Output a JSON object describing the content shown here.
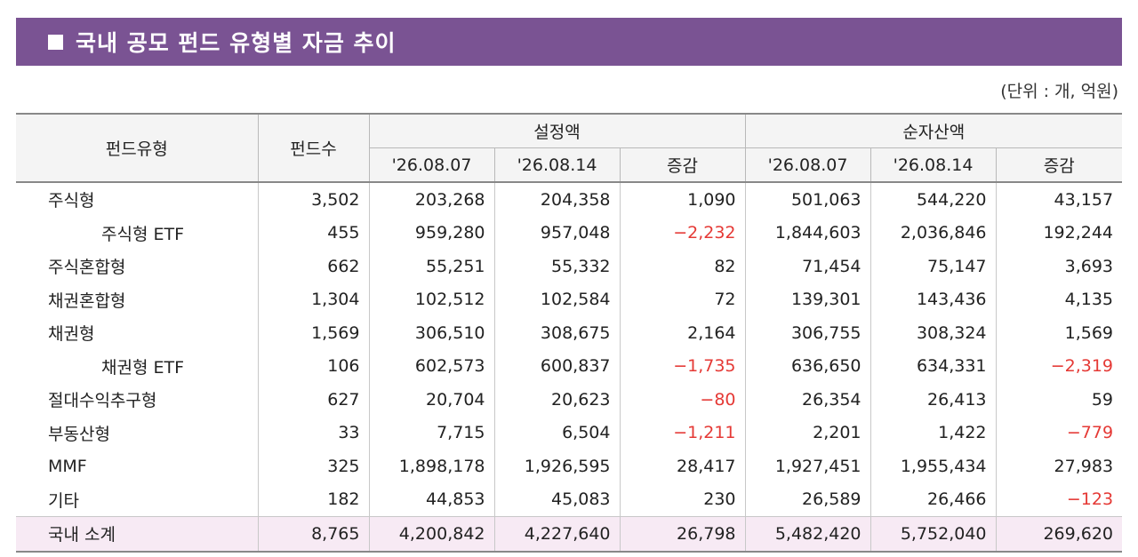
{
  "title": "국내 공모 펀드 유형별 자금 추이",
  "unit": "(단위 : 개, 억원)",
  "headers": {
    "type": "펀드유형",
    "count": "펀드수",
    "set_amount": "설정액",
    "net_assets": "순자산액",
    "date1": "'26.08.07",
    "date2": "'26.08.14",
    "change": "증감"
  },
  "rows": [
    {
      "name": "주식형",
      "indent": false,
      "c": [
        "3,502",
        "203,268",
        "204,358",
        "1,090",
        "501,063",
        "544,220",
        "43,157"
      ]
    },
    {
      "name": "주식형 ETF",
      "indent": true,
      "c": [
        "455",
        "959,280",
        "957,048",
        "−2,232",
        "1,844,603",
        "2,036,846",
        "192,244"
      ]
    },
    {
      "name": "주식혼합형",
      "indent": false,
      "c": [
        "662",
        "55,251",
        "55,332",
        "82",
        "71,454",
        "75,147",
        "3,693"
      ]
    },
    {
      "name": "채권혼합형",
      "indent": false,
      "c": [
        "1,304",
        "102,512",
        "102,584",
        "72",
        "139,301",
        "143,436",
        "4,135"
      ]
    },
    {
      "name": "채권형",
      "indent": false,
      "c": [
        "1,569",
        "306,510",
        "308,675",
        "2,164",
        "306,755",
        "308,324",
        "1,569"
      ]
    },
    {
      "name": "채권형 ETF",
      "indent": true,
      "c": [
        "106",
        "602,573",
        "600,837",
        "−1,735",
        "636,650",
        "634,331",
        "−2,319"
      ]
    },
    {
      "name": "절대수익추구형",
      "indent": false,
      "c": [
        "627",
        "20,704",
        "20,623",
        "−80",
        "26,354",
        "26,413",
        "59"
      ]
    },
    {
      "name": "부동산형",
      "indent": false,
      "c": [
        "33",
        "7,715",
        "6,504",
        "−1,211",
        "2,201",
        "1,422",
        "−779"
      ]
    },
    {
      "name": "MMF",
      "indent": false,
      "c": [
        "325",
        "1,898,178",
        "1,926,595",
        "28,417",
        "1,927,451",
        "1,955,434",
        "27,983"
      ]
    },
    {
      "name": "기타",
      "indent": false,
      "c": [
        "182",
        "44,853",
        "45,083",
        "230",
        "26,589",
        "26,466",
        "−123"
      ]
    },
    {
      "name": "국내 소계",
      "indent": false,
      "total": true,
      "c": [
        "8,765",
        "4,200,842",
        "4,227,640",
        "26,798",
        "5,482,420",
        "5,752,040",
        "269,620"
      ]
    }
  ]
}
